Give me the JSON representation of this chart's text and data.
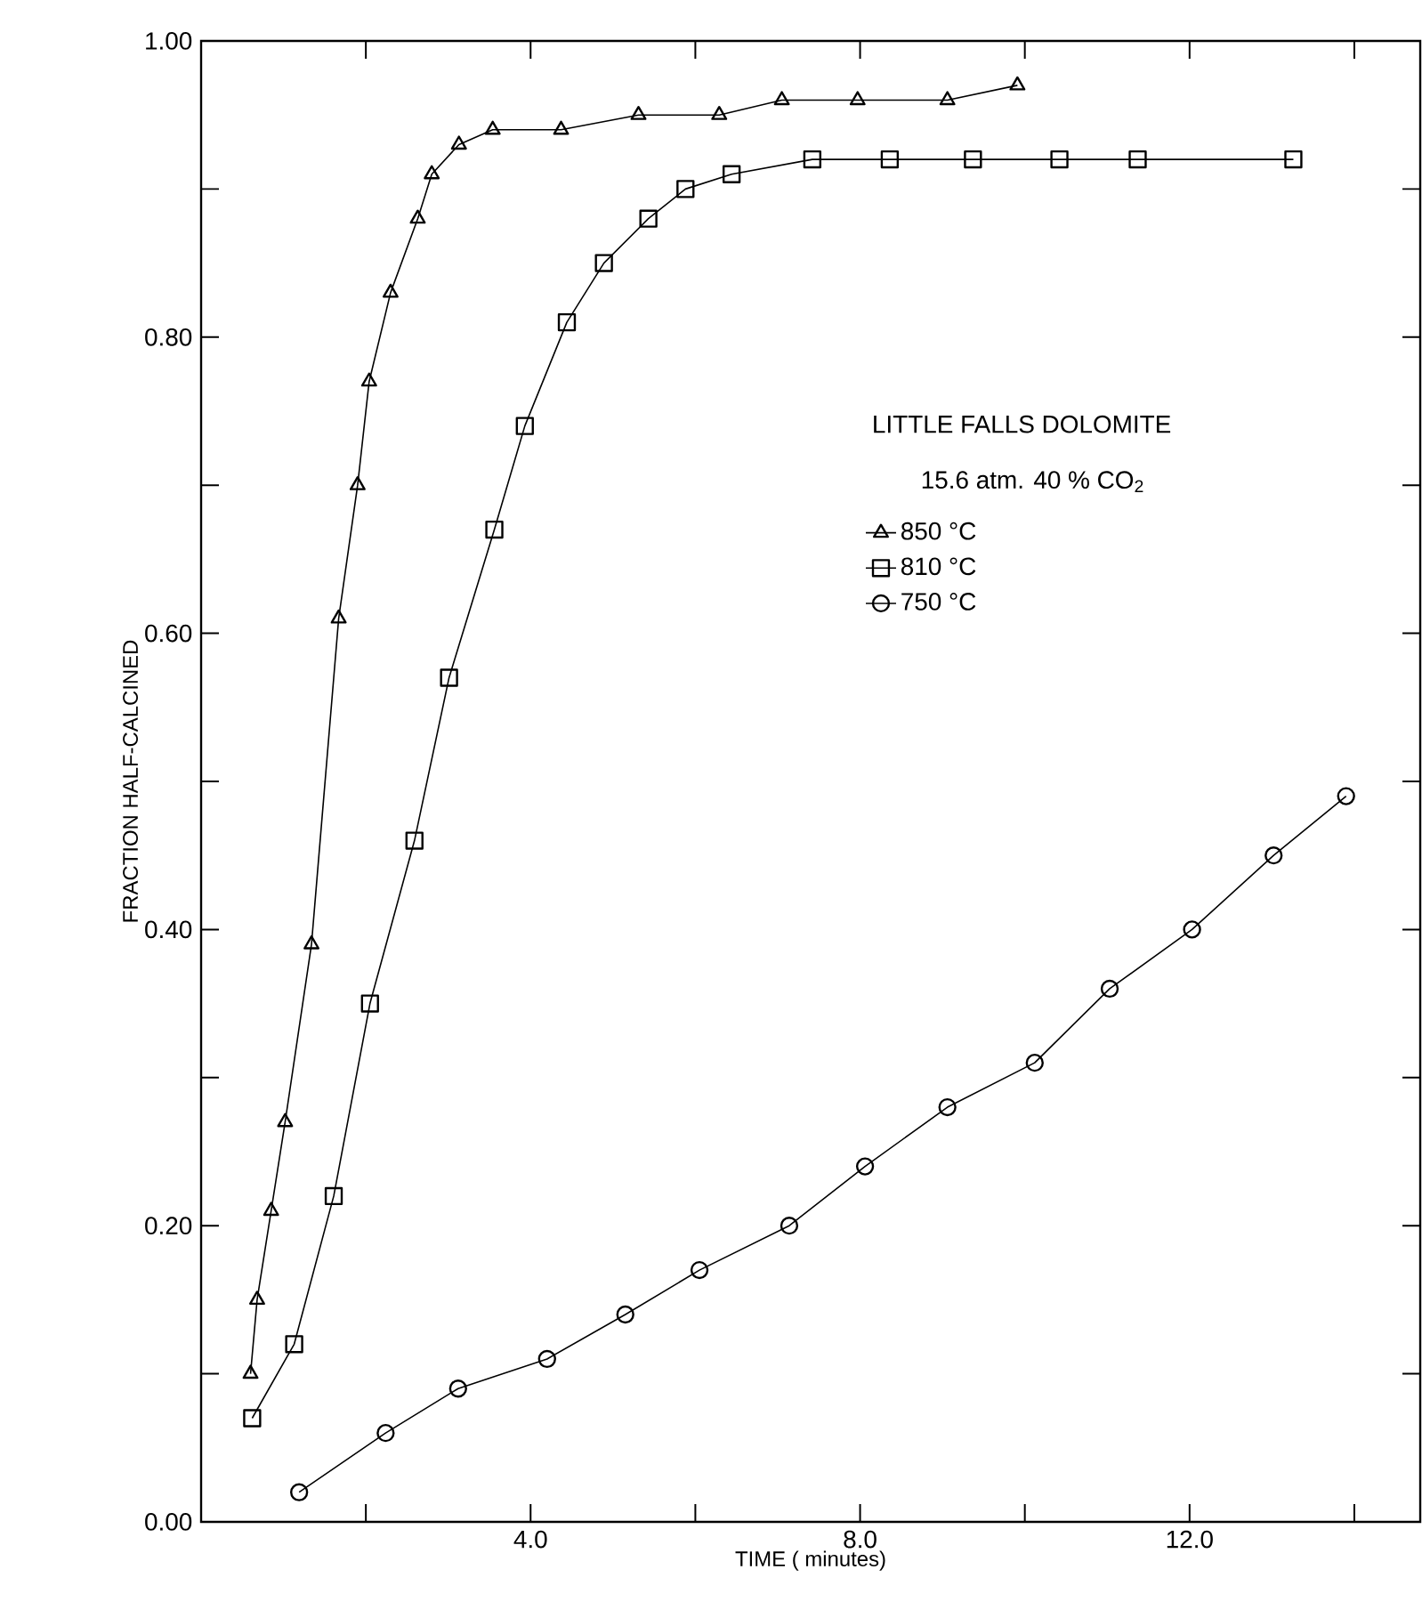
{
  "chart_data": {
    "type": "line",
    "xlabel": "TIME  ( minutes)",
    "ylabel": "FRACTION   HALF-CALCINED",
    "legend_title": "LITTLE  FALLS  DOLOMITE",
    "annotations": [
      "15.6 atm.  40 % CO$_{2}$"
    ],
    "xlim": [
      0,
      14.8
    ],
    "ylim": [
      0,
      1.0
    ],
    "xticks": [
      {
        "value": 2,
        "label": null
      },
      {
        "value": 4,
        "label": "4.0"
      },
      {
        "value": 6,
        "label": null
      },
      {
        "value": 8,
        "label": "8.0"
      },
      {
        "value": 10,
        "label": null
      },
      {
        "value": 12,
        "label": "12.0"
      },
      {
        "value": 14,
        "label": null
      }
    ],
    "yticks": [
      {
        "value": 0,
        "label": "0.00"
      },
      {
        "value": 0.1,
        "label": null
      },
      {
        "value": 0.2,
        "label": "0.20"
      },
      {
        "value": 0.3,
        "label": null
      },
      {
        "value": 0.4,
        "label": "0.40"
      },
      {
        "value": 0.5,
        "label": null
      },
      {
        "value": 0.6,
        "label": "0.60"
      },
      {
        "value": 0.7,
        "label": null
      },
      {
        "value": 0.8,
        "label": "0.80"
      },
      {
        "value": 0.9,
        "label": null
      },
      {
        "value": 1.0,
        "label": "1.00"
      }
    ],
    "legend": "center",
    "grid": false,
    "series": [
      {
        "name": "850 °C",
        "color": "#000000",
        "marker": "triangle",
        "x": [
          0.6,
          0.68,
          0.85,
          1.02,
          1.34,
          1.67,
          1.9,
          2.04,
          2.3,
          2.63,
          2.8,
          3.13,
          3.54,
          4.37,
          5.31,
          6.29,
          7.05,
          7.97,
          9.06,
          9.91
        ],
        "values": [
          0.1,
          0.15,
          0.21,
          0.27,
          0.39,
          0.61,
          0.7,
          0.77,
          0.83,
          0.88,
          0.91,
          0.93,
          0.94,
          0.94,
          0.95,
          0.95,
          0.96,
          0.96,
          0.96,
          0.97
        ]
      },
      {
        "name": "810 °C",
        "color": "#000000",
        "marker": "square",
        "x": [
          0.62,
          1.13,
          1.61,
          2.05,
          2.59,
          3.01,
          3.56,
          3.93,
          4.44,
          4.89,
          5.43,
          5.88,
          6.44,
          7.42,
          8.36,
          9.37,
          10.42,
          11.37,
          13.26
        ],
        "values": [
          0.07,
          0.12,
          0.22,
          0.35,
          0.46,
          0.57,
          0.67,
          0.74,
          0.81,
          0.85,
          0.88,
          0.9,
          0.91,
          0.92,
          0.92,
          0.92,
          0.92,
          0.92,
          0.92
        ]
      },
      {
        "name": "750 °C",
        "color": "#000000",
        "marker": "circle",
        "x": [
          1.19,
          2.24,
          3.12,
          4.2,
          5.15,
          6.05,
          7.14,
          8.06,
          9.06,
          10.12,
          11.03,
          12.03,
          13.02,
          13.9
        ],
        "values": [
          0.02,
          0.06,
          0.09,
          0.11,
          0.14,
          0.17,
          0.2,
          0.24,
          0.28,
          0.31,
          0.36,
          0.4,
          0.45,
          0.49
        ]
      }
    ]
  }
}
